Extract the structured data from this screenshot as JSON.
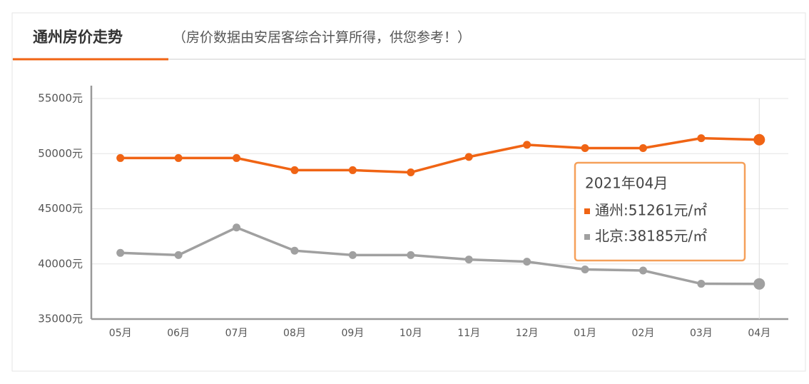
{
  "chart_data": {
    "type": "line",
    "title": "通州房价走势",
    "subtitle": "（房价数据由安居客综合计算所得，供您参考！）",
    "categories": [
      "05月",
      "06月",
      "07月",
      "08月",
      "09月",
      "10月",
      "11月",
      "12月",
      "01月",
      "02月",
      "03月",
      "04月"
    ],
    "series": [
      {
        "color": "#f06414",
        "values": [
          49600,
          49600,
          49600,
          48500,
          48500,
          48300,
          49700,
          50800,
          50500,
          50500,
          51400,
          51261
        ]
      },
      {
        "color": "#a0a0a0",
        "values": [
          41000,
          40800,
          43300,
          41200,
          40800,
          40800,
          40400,
          40200,
          39500,
          39400,
          38200,
          38185
        ]
      }
    ],
    "ylim": [
      35000,
      55000
    ],
    "yticks": [
      {
        "value": 35000,
        "label": "35000元"
      },
      {
        "value": 40000,
        "label": "40000元"
      },
      {
        "value": 45000,
        "label": "45000元"
      },
      {
        "value": 50000,
        "label": "50000元"
      },
      {
        "value": 55000,
        "label": "55000元"
      }
    ],
    "grid": true,
    "tooltip": {
      "title": "2021年04月",
      "items": [
        "通州:51261元/㎡",
        "北京:38185元/㎡"
      ]
    }
  }
}
